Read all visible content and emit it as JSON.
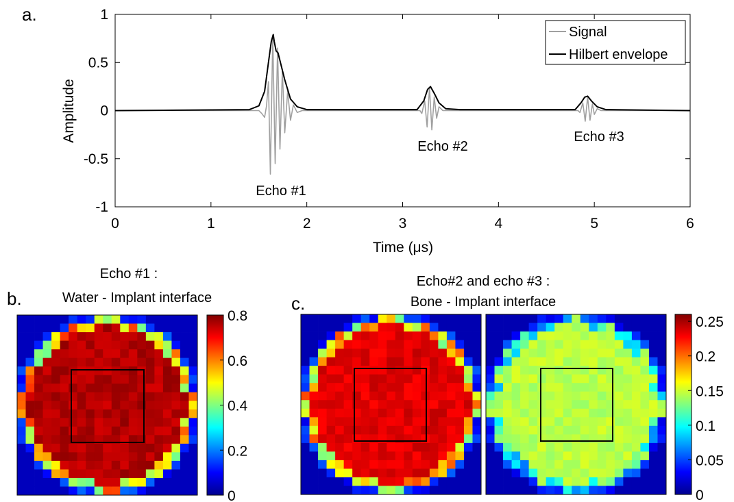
{
  "panels": {
    "a": {
      "letter": "a.",
      "chart_data": {
        "type": "line",
        "title": "",
        "xlabel": "Time (μs)",
        "ylabel": "Amplitude",
        "xlim": [
          0,
          6
        ],
        "ylim": [
          -1,
          1
        ],
        "xticks": [
          "0",
          "1",
          "2",
          "3",
          "4",
          "5",
          "6"
        ],
        "yticks": [
          "1",
          "0.5",
          "0",
          "-0.5",
          "-1"
        ],
        "grid": false,
        "legend_position": "top-right",
        "series": [
          {
            "name": "Signal",
            "color": "#a0a0a0",
            "points": [
              [
                0,
                0
              ],
              [
                1.5,
                0
              ],
              [
                1.53,
                -0.03
              ],
              [
                1.56,
                -0.07
              ],
              [
                1.58,
                0.05
              ],
              [
                1.6,
                0.3
              ],
              [
                1.62,
                -0.66
              ],
              [
                1.645,
                0.78
              ],
              [
                1.67,
                -0.55
              ],
              [
                1.695,
                0.65
              ],
              [
                1.72,
                -0.4
              ],
              [
                1.745,
                0.42
              ],
              [
                1.77,
                -0.23
              ],
              [
                1.8,
                0.2
              ],
              [
                1.83,
                -0.1
              ],
              [
                1.86,
                0.06
              ],
              [
                1.9,
                -0.02
              ],
              [
                1.95,
                0
              ],
              [
                3.18,
                0
              ],
              [
                3.2,
                -0.03
              ],
              [
                3.23,
                0.1
              ],
              [
                3.255,
                -0.17
              ],
              [
                3.28,
                0.24
              ],
              [
                3.305,
                -0.2
              ],
              [
                3.33,
                0.14
              ],
              [
                3.355,
                -0.08
              ],
              [
                3.38,
                0.04
              ],
              [
                3.42,
                0
              ],
              [
                4.83,
                0
              ],
              [
                4.85,
                -0.02
              ],
              [
                4.88,
                0.08
              ],
              [
                4.905,
                -0.11
              ],
              [
                4.93,
                0.14
              ],
              [
                4.955,
                -0.1
              ],
              [
                4.98,
                0.07
              ],
              [
                5.0,
                -0.04
              ],
              [
                5.03,
                0.02
              ],
              [
                5.07,
                0
              ],
              [
                6,
                0
              ]
            ]
          },
          {
            "name": "Hilbert envelope",
            "color": "#000000",
            "points": [
              [
                0,
                0
              ],
              [
                1.4,
                0.01
              ],
              [
                1.5,
                0.05
              ],
              [
                1.56,
                0.2
              ],
              [
                1.6,
                0.5
              ],
              [
                1.63,
                0.72
              ],
              [
                1.65,
                0.79
              ],
              [
                1.66,
                0.72
              ],
              [
                1.68,
                0.62
              ],
              [
                1.7,
                0.6
              ],
              [
                1.73,
                0.48
              ],
              [
                1.77,
                0.32
              ],
              [
                1.83,
                0.12
              ],
              [
                1.9,
                0.04
              ],
              [
                2.0,
                0.01
              ],
              [
                3.15,
                0.01
              ],
              [
                3.22,
                0.1
              ],
              [
                3.26,
                0.22
              ],
              [
                3.29,
                0.25
              ],
              [
                3.33,
                0.18
              ],
              [
                3.38,
                0.08
              ],
              [
                3.45,
                0.02
              ],
              [
                3.6,
                0.01
              ],
              [
                4.8,
                0.01
              ],
              [
                4.86,
                0.08
              ],
              [
                4.9,
                0.14
              ],
              [
                4.93,
                0.15
              ],
              [
                4.97,
                0.1
              ],
              [
                5.03,
                0.04
              ],
              [
                5.12,
                0.01
              ],
              [
                6,
                0
              ]
            ]
          }
        ],
        "annotations": [
          {
            "text": "Echo #1",
            "x": 1.7,
            "y": -0.84
          },
          {
            "text": "Echo #2",
            "x": 3.3,
            "y": -0.37
          },
          {
            "text": "Echo #3",
            "x": 4.95,
            "y": -0.27
          }
        ]
      }
    },
    "b": {
      "letter": "b.",
      "title_lines": [
        "Echo #1 :",
        "Water - Implant interface"
      ],
      "chart_data": {
        "type": "heatmap",
        "grid_size": 21,
        "colormap": "jet",
        "clim": [
          0,
          0.8
        ],
        "colorbar_ticks": [
          "0.8",
          "0.6",
          "0.4",
          "0.2",
          "0"
        ],
        "colorbar_values": [
          0.8,
          0.6,
          0.4,
          0.2,
          0
        ],
        "interior_value": 0.76,
        "edge_value": 0.52,
        "outside_value": 0.04,
        "roi_square": true
      }
    },
    "c": {
      "letter": "c.",
      "title_lines": [
        "Echo#2 and echo #3 :",
        "Bone - Implant interface"
      ],
      "chart_data": [
        {
          "type": "heatmap",
          "grid_size": 21,
          "colormap": "jet",
          "clim": [
            0,
            0.26
          ],
          "interior_value": 0.235,
          "edge_value": 0.17,
          "outside_value": 0.01,
          "roi_square": true
        },
        {
          "type": "heatmap",
          "grid_size": 21,
          "colormap": "jet",
          "clim": [
            0,
            0.26
          ],
          "interior_value": 0.145,
          "edge_value": 0.105,
          "outside_value": 0.01,
          "roi_square": true
        }
      ],
      "colorbar_ticks": [
        "0.25",
        "0.2",
        "0.15",
        "0.1",
        "0.05",
        "0"
      ],
      "colorbar_values": [
        0.25,
        0.2,
        0.15,
        0.1,
        0.05,
        0
      ],
      "colorbar_clim": [
        0,
        0.26
      ]
    }
  }
}
